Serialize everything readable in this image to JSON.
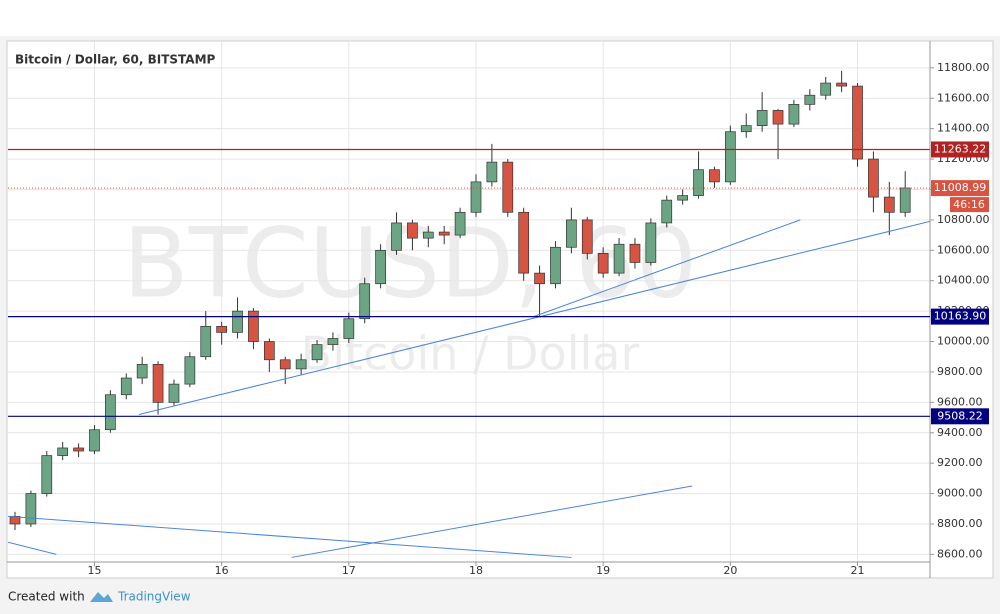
{
  "chart_data": {
    "type": "candlestick",
    "title": "Bitcoin / Dollar, 60, BITSTAMP",
    "watermark": "BTCUSD, 60",
    "watermark_subtitle": "Bitcoin / Dollar",
    "up_color": "#6ba583",
    "down_color": "#d75442",
    "xlim": [
      14.32,
      21.57
    ],
    "ylim": [
      8550,
      11970
    ],
    "xticks": [
      15,
      16,
      17,
      18,
      19,
      20,
      21
    ],
    "yticks": [
      {
        "value": 8600,
        "label": "8600.00"
      },
      {
        "value": 8800,
        "label": "8800.00"
      },
      {
        "value": 9000,
        "label": "9000.00"
      },
      {
        "value": 9200,
        "label": "9200.00"
      },
      {
        "value": 9400,
        "label": "9400.00"
      },
      {
        "value": 9600,
        "label": "9600.00"
      },
      {
        "value": 9800,
        "label": "9800.00"
      },
      {
        "value": 10000,
        "label": "10000.00"
      },
      {
        "value": 10200,
        "label": "10200.00"
      },
      {
        "value": 10400,
        "label": "10400.00"
      },
      {
        "value": 10600,
        "label": "10600.00"
      },
      {
        "value": 10800,
        "label": "10800.00"
      },
      {
        "value": 11000,
        "label": "11000.00"
      },
      {
        "value": 11200,
        "label": "11200.00"
      },
      {
        "value": 11400,
        "label": "11400.00"
      },
      {
        "value": 11600,
        "label": "11600.00"
      },
      {
        "value": 11800,
        "label": "11800.00"
      }
    ],
    "grid": true,
    "x": [
      14.375,
      14.5,
      14.625,
      14.75,
      14.875,
      15,
      15.125,
      15.25,
      15.375,
      15.5,
      15.625,
      15.75,
      15.875,
      16,
      16.125,
      16.25,
      16.375,
      16.5,
      16.625,
      16.75,
      16.875,
      17,
      17.125,
      17.25,
      17.375,
      17.5,
      17.625,
      17.75,
      17.875,
      18,
      18.125,
      18.25,
      18.375,
      18.5,
      18.625,
      18.75,
      18.875,
      19,
      19.125,
      19.25,
      19.375,
      19.5,
      19.625,
      19.75,
      19.875,
      20,
      20.125,
      20.25,
      20.375,
      20.5,
      20.625,
      20.75,
      20.875,
      21,
      21.125,
      21.25,
      21.375
    ],
    "open": [
      8850,
      8800,
      9000,
      9250,
      9300,
      9280,
      9420,
      9650,
      9760,
      9850,
      9600,
      9720,
      9900,
      10100,
      10060,
      10200,
      10000,
      9880,
      9820,
      9880,
      9980,
      10020,
      10150,
      10380,
      10600,
      10780,
      10680,
      10720,
      10700,
      10850,
      11050,
      11180,
      10850,
      10450,
      10380,
      10620,
      10800,
      10580,
      10450,
      10640,
      10520,
      10780,
      10930,
      10960,
      11130,
      11050,
      11380,
      11420,
      11520,
      11430,
      11560,
      11620,
      11700,
      11680,
      11200,
      10950,
      10850
    ],
    "high": [
      8880,
      9020,
      9280,
      9340,
      9330,
      9450,
      9680,
      9790,
      9900,
      9870,
      9750,
      9930,
      10200,
      10130,
      10290,
      10220,
      10020,
      9900,
      9920,
      10010,
      10060,
      10190,
      10420,
      10640,
      10850,
      10800,
      10760,
      10760,
      10880,
      11100,
      11300,
      11200,
      10880,
      10500,
      10660,
      10880,
      10820,
      10620,
      10680,
      10680,
      10810,
      10960,
      11000,
      11250,
      11150,
      11420,
      11500,
      11640,
      11530,
      11590,
      11660,
      11740,
      11780,
      11700,
      11250,
      11050,
      11120
    ],
    "low": [
      8760,
      8780,
      8980,
      9220,
      9240,
      9260,
      9400,
      9620,
      9720,
      9520,
      9580,
      9700,
      9880,
      9980,
      10020,
      9950,
      9800,
      9720,
      9780,
      9860,
      9940,
      9990,
      10120,
      10350,
      10570,
      10600,
      10620,
      10640,
      10680,
      10820,
      11020,
      10820,
      10400,
      10163,
      10350,
      10580,
      10540,
      10420,
      10430,
      10480,
      10500,
      10750,
      10900,
      10940,
      11010,
      11030,
      11340,
      11380,
      11200,
      11410,
      11520,
      11590,
      11640,
      11150,
      10850,
      10700,
      10820
    ],
    "close": [
      8800,
      9000,
      9250,
      9300,
      9280,
      9420,
      9650,
      9760,
      9850,
      9600,
      9720,
      9900,
      10100,
      10060,
      10200,
      10000,
      9880,
      9820,
      9880,
      9980,
      10020,
      10150,
      10380,
      10600,
      10780,
      10680,
      10720,
      10700,
      10850,
      11050,
      11180,
      10850,
      10450,
      10380,
      10620,
      10800,
      10580,
      10450,
      10640,
      10520,
      10780,
      10930,
      10960,
      11130,
      11050,
      11380,
      11420,
      11520,
      11430,
      11560,
      11620,
      11700,
      11680,
      11200,
      10950,
      10850,
      11010
    ],
    "levels": [
      {
        "value": 11263.22,
        "label": "11263.22",
        "color": "#b22222"
      },
      {
        "value": 10163.9,
        "label": "10163.90",
        "color": "#000080"
      },
      {
        "value": 9508.22,
        "label": "9508.22",
        "color": "#000080"
      }
    ],
    "last_price": {
      "value": 11008.99,
      "label": "11008.99",
      "color": "#d75442"
    },
    "countdown": "46:16",
    "trend_color": "#4a86d8",
    "trend_lines": [
      {
        "x": [
          15.35,
          21.57
        ],
        "y": [
          9520,
          10790
        ]
      },
      {
        "x": [
          18.45,
          20.55
        ],
        "y": [
          10163,
          10800
        ]
      },
      {
        "x": [
          14.32,
          18.75
        ],
        "y": [
          8850,
          8580
        ]
      },
      {
        "x": [
          16.55,
          19.7
        ],
        "y": [
          8580,
          9050
        ]
      },
      {
        "x": [
          14.32,
          14.7
        ],
        "y": [
          8680,
          8600
        ]
      }
    ],
    "footer_text": "Created with",
    "footer_brand": "TradingView"
  }
}
